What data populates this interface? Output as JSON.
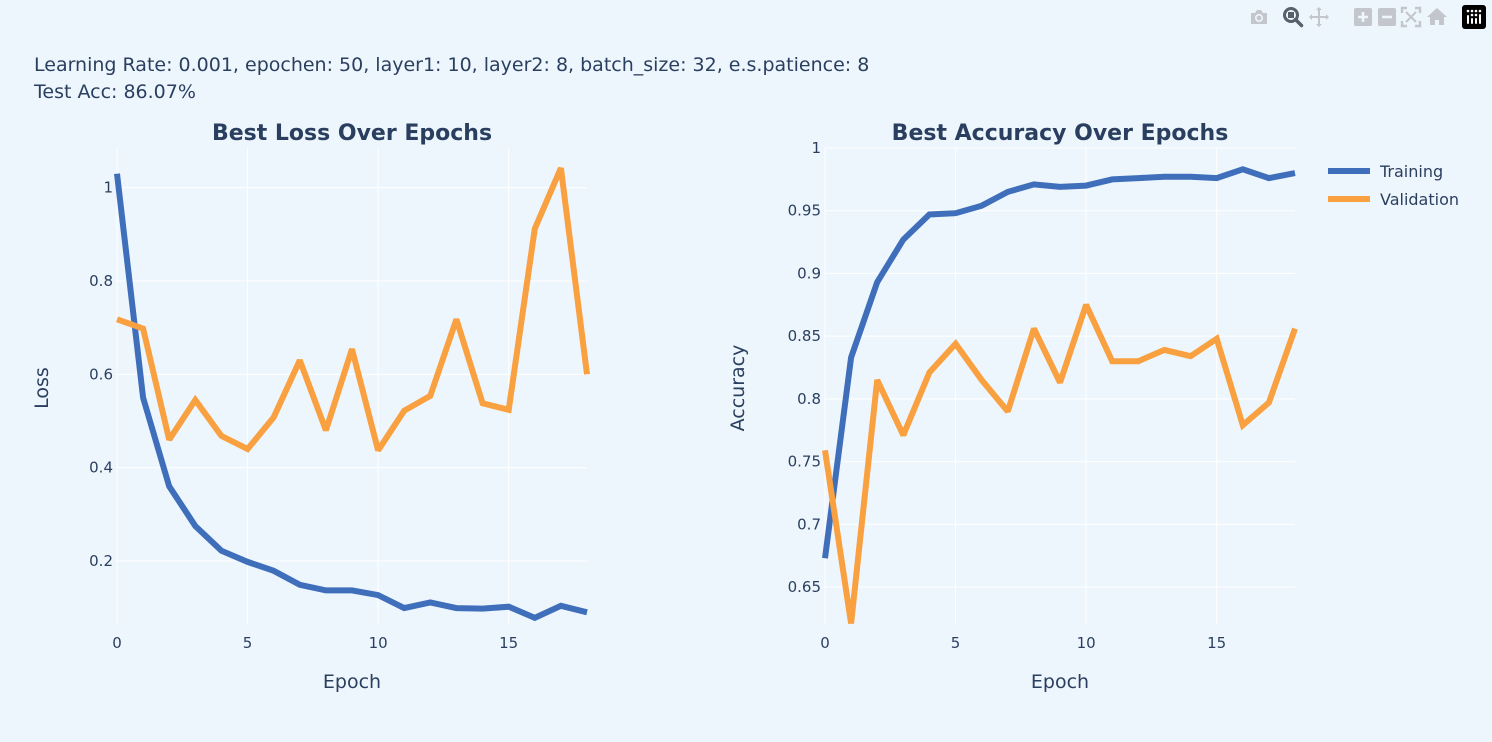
{
  "header": {
    "line1": "Learning Rate: 0.001, epochen: 50, layer1: 10, layer2: 8, batch_size: 32, e.s.patience: 8",
    "line2": "Test Acc: 86.07%"
  },
  "modebar": {
    "icons": [
      "camera-icon",
      "zoom-icon",
      "pan-icon",
      "zoom-in-icon",
      "zoom-out-icon",
      "autoscale-icon",
      "reset-axes-icon",
      "plotly-logo"
    ]
  },
  "colors": {
    "training": "#3f6fba",
    "validation": "#f9a040",
    "grid": "#ffffff",
    "text": "#2a3f5f",
    "background": "#eef6fd"
  },
  "legend": {
    "entries": [
      "Training",
      "Validation"
    ],
    "placement": "top-right"
  },
  "chart_data": [
    {
      "type": "line",
      "title": "Best Loss Over Epochs",
      "xlabel": "Epoch",
      "ylabel": "Loss",
      "xlim": [
        0,
        18
      ],
      "ylim": [
        0.065,
        1.085
      ],
      "xticks": [
        0,
        5,
        10,
        15
      ],
      "yticks": [
        0.2,
        0.4,
        0.6,
        0.8,
        1
      ],
      "ytick_labels": [
        "0.2",
        "0.4",
        "0.6",
        "0.8",
        "1"
      ],
      "grid": true,
      "x": [
        0,
        1,
        2,
        3,
        4,
        5,
        6,
        7,
        8,
        9,
        10,
        11,
        12,
        13,
        14,
        15,
        16,
        17,
        18
      ],
      "series": [
        {
          "name": "Training",
          "values": [
            1.03,
            0.55,
            0.36,
            0.275,
            0.222,
            0.198,
            0.179,
            0.149,
            0.137,
            0.137,
            0.127,
            0.099,
            0.111,
            0.099,
            0.098,
            0.102,
            0.078,
            0.104,
            0.09
          ]
        },
        {
          "name": "Validation",
          "values": [
            0.718,
            0.698,
            0.46,
            0.545,
            0.468,
            0.44,
            0.508,
            0.63,
            0.48,
            0.654,
            0.437,
            0.522,
            0.554,
            0.718,
            0.538,
            0.524,
            0.912,
            1.042,
            0.6
          ]
        }
      ]
    },
    {
      "type": "line",
      "title": "Best Accuracy Over Epochs",
      "xlabel": "Epoch",
      "ylabel": "Accuracy",
      "xlim": [
        0,
        18
      ],
      "ylim": [
        0.6205,
        1.0
      ],
      "xticks": [
        0,
        5,
        10,
        15
      ],
      "yticks": [
        0.65,
        0.7,
        0.75,
        0.8,
        0.85,
        0.9,
        0.95,
        1
      ],
      "ytick_labels": [
        "0.65",
        "0.7",
        "0.75",
        "0.8",
        "0.85",
        "0.9",
        "0.95",
        "1"
      ],
      "grid": true,
      "x": [
        0,
        1,
        2,
        3,
        4,
        5,
        6,
        7,
        8,
        9,
        10,
        11,
        12,
        13,
        14,
        15,
        16,
        17,
        18
      ],
      "series": [
        {
          "name": "Training",
          "values": [
            0.673,
            0.833,
            0.893,
            0.927,
            0.947,
            0.948,
            0.954,
            0.965,
            0.971,
            0.969,
            0.97,
            0.975,
            0.976,
            0.977,
            0.977,
            0.976,
            0.983,
            0.976,
            0.98
          ]
        },
        {
          "name": "Validation",
          "values": [
            0.759,
            0.621,
            0.815,
            0.771,
            0.821,
            0.844,
            0.815,
            0.79,
            0.856,
            0.813,
            0.875,
            0.83,
            0.83,
            0.839,
            0.834,
            0.848,
            0.779,
            0.797,
            0.856
          ]
        }
      ]
    }
  ]
}
